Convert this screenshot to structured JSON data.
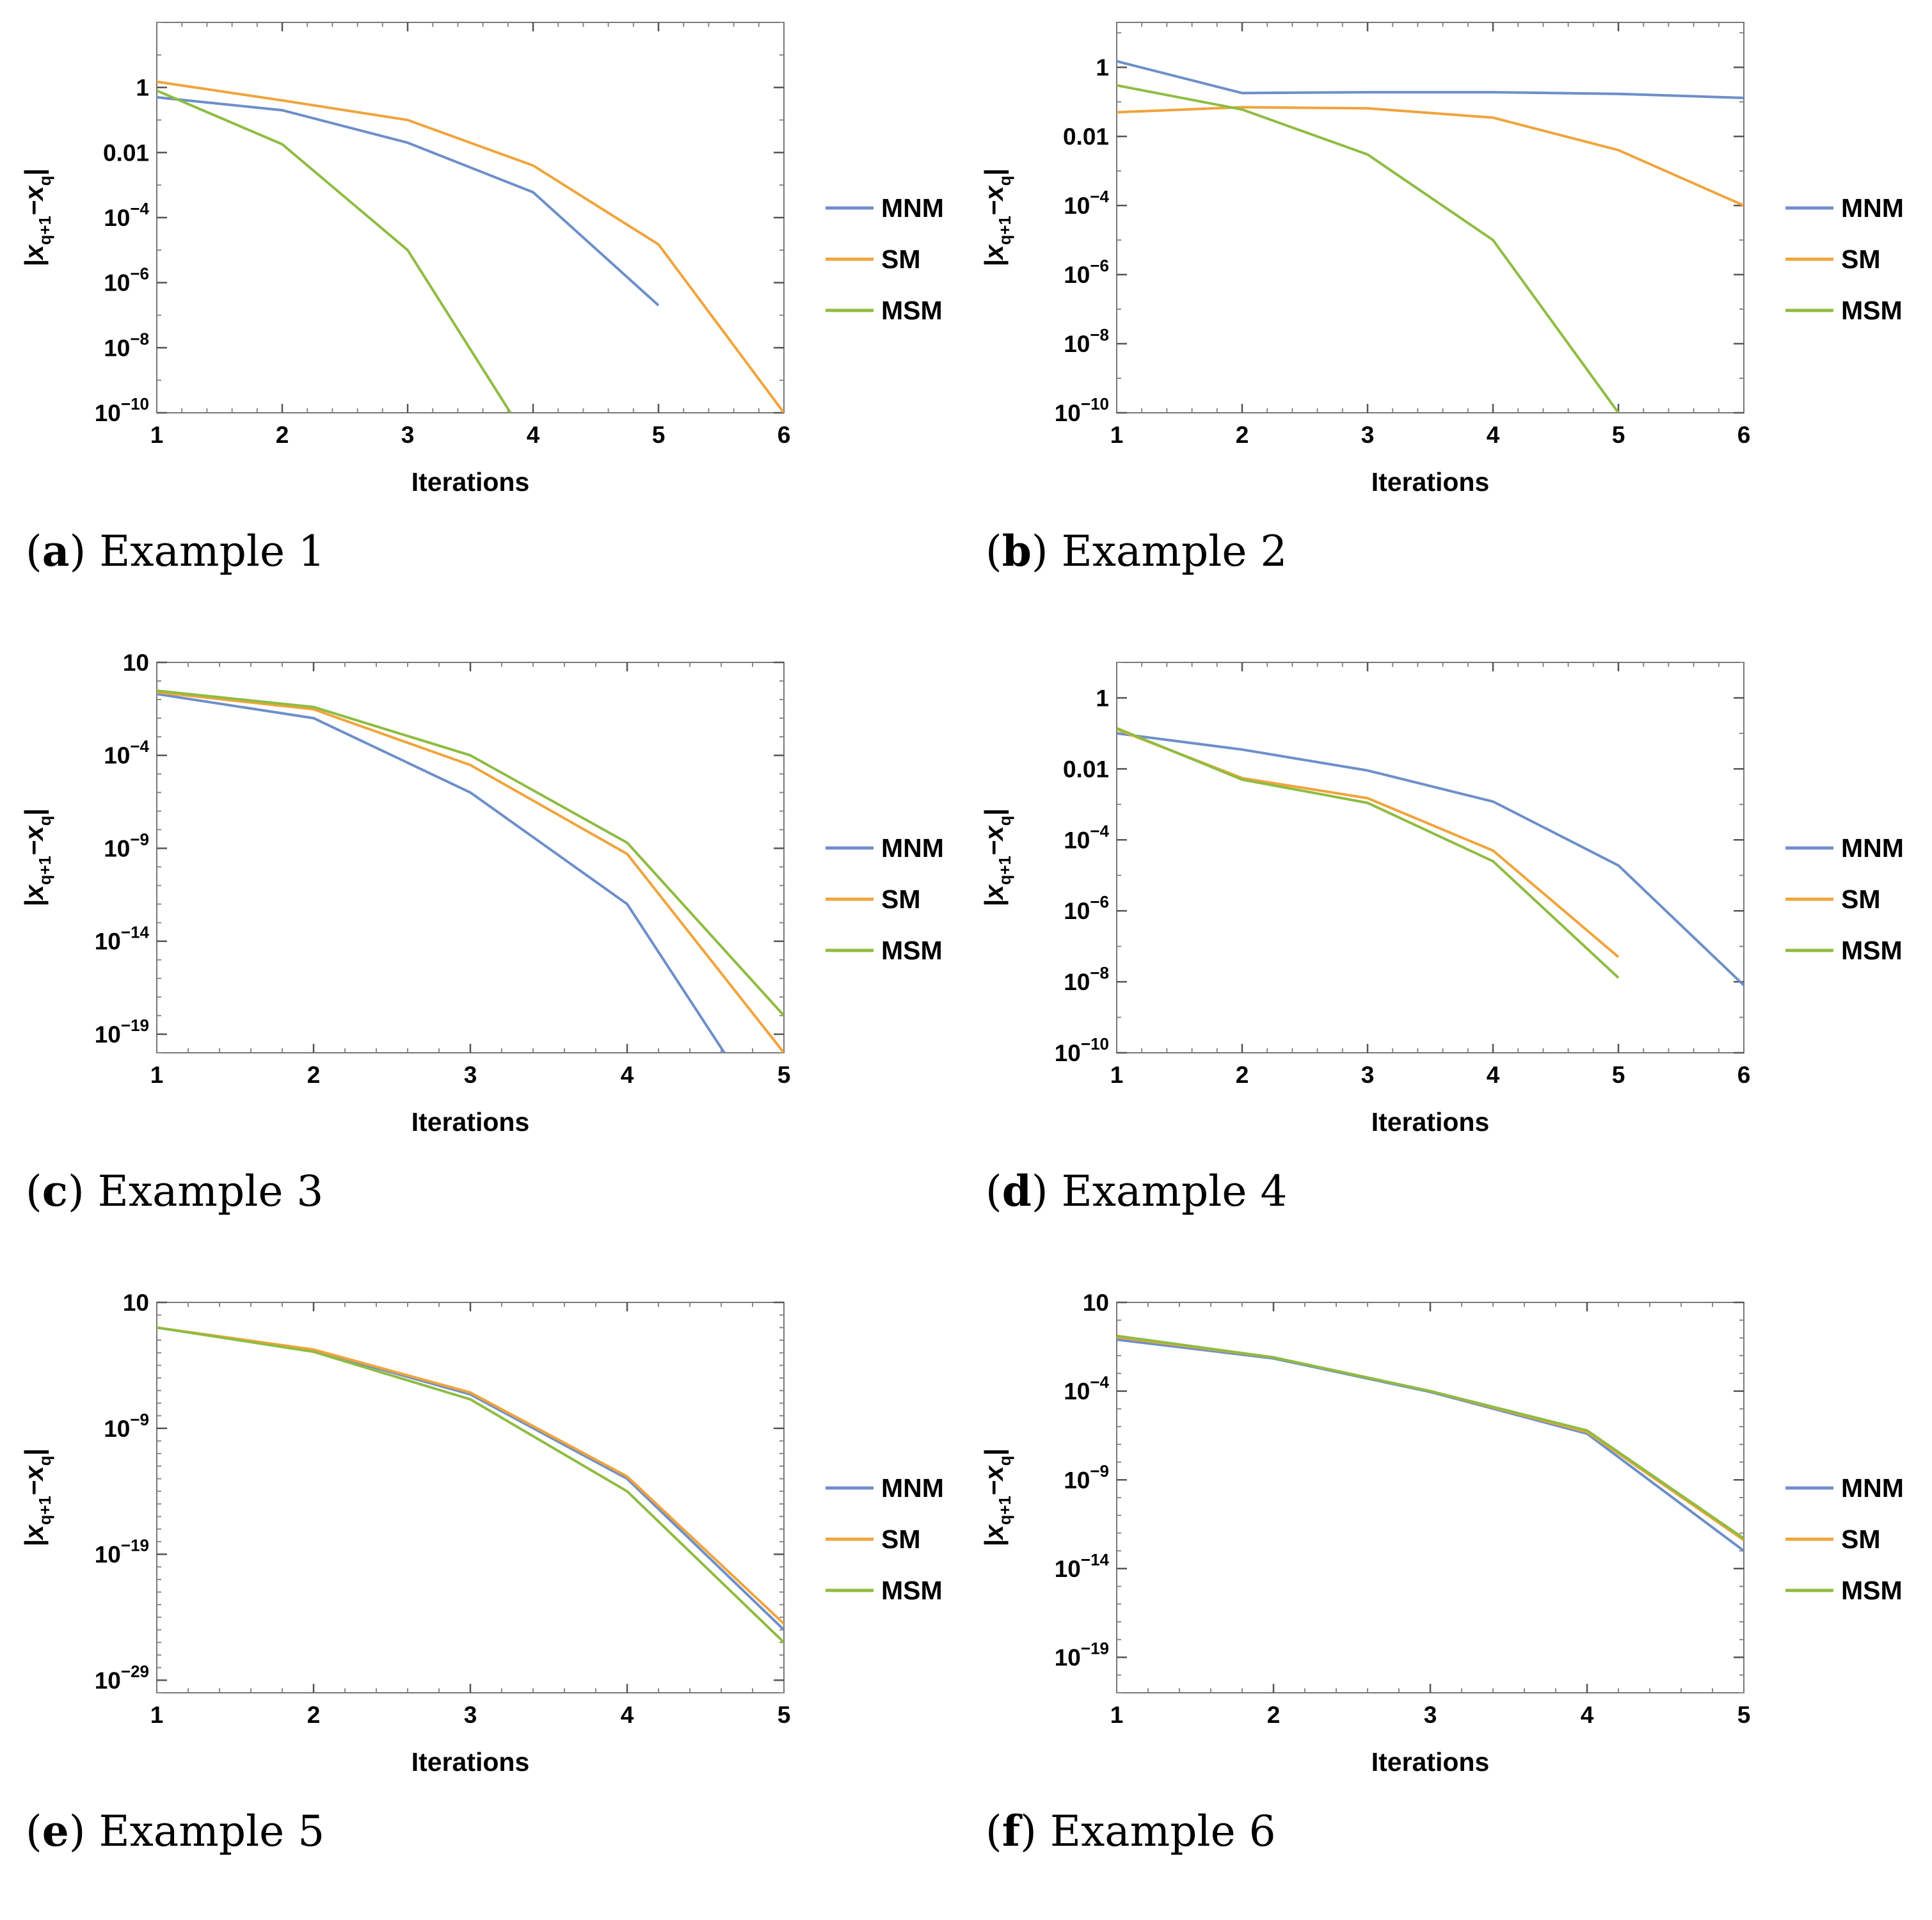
{
  "colors": {
    "MNM": "#6d8fc9",
    "SM": "#f0a43c",
    "MSM": "#8ebc42"
  },
  "chart_data": [
    {
      "type": "line",
      "yscale": "log",
      "caption_letter": "a",
      "caption_text": "Example 1",
      "xlabel": "Iterations",
      "ylabel": "|x",
      "xlim": [
        1,
        6
      ],
      "xticks": [
        "1",
        "2",
        "3",
        "4",
        "5",
        "6"
      ],
      "ylog_range": [
        -10,
        2
      ],
      "yticks": [
        {
          "exp": 0,
          "label": "1",
          "sup": ""
        },
        {
          "exp": -2,
          "label": "0.01",
          "sup": ""
        },
        {
          "exp": -4,
          "label": "10",
          "sup": "−4"
        },
        {
          "exp": -6,
          "label": "10",
          "sup": "−6"
        },
        {
          "exp": -8,
          "label": "10",
          "sup": "−8"
        },
        {
          "exp": -10,
          "label": "10",
          "sup": "−10"
        }
      ],
      "legend": [
        "MNM",
        "SM",
        "MSM"
      ],
      "series": [
        {
          "name": "MNM",
          "x": [
            1,
            2,
            3,
            4,
            5
          ],
          "y": [
            0.5,
            0.2,
            0.02,
            0.0006,
            2e-07
          ]
        },
        {
          "name": "SM",
          "x": [
            1,
            2,
            3,
            4,
            5,
            6
          ],
          "y": [
            1.5,
            0.4,
            0.1,
            0.004,
            1.5e-05,
            1e-10
          ]
        },
        {
          "name": "MSM",
          "x": [
            1,
            2,
            3,
            3.82
          ],
          "y": [
            0.8,
            0.018,
            1e-05,
            1e-10
          ]
        }
      ]
    },
    {
      "type": "line",
      "yscale": "log",
      "caption_letter": "b",
      "caption_text": "Example 2",
      "xlabel": "Iterations",
      "ylabel": "|x",
      "xlim": [
        1,
        6
      ],
      "xticks": [
        "1",
        "2",
        "3",
        "4",
        "5",
        "6"
      ],
      "ylog_range": [
        -10,
        1.3
      ],
      "yticks": [
        {
          "exp": 0,
          "label": "1",
          "sup": ""
        },
        {
          "exp": -2,
          "label": "0.01",
          "sup": ""
        },
        {
          "exp": -4,
          "label": "10",
          "sup": "−4"
        },
        {
          "exp": -6,
          "label": "10",
          "sup": "−6"
        },
        {
          "exp": -8,
          "label": "10",
          "sup": "−8"
        },
        {
          "exp": -10,
          "label": "10",
          "sup": "−10"
        }
      ],
      "legend": [
        "MNM",
        "SM",
        "MSM"
      ],
      "series": [
        {
          "name": "MNM",
          "x": [
            1,
            2,
            3,
            4,
            5,
            6
          ],
          "y": [
            1.5,
            0.18,
            0.19,
            0.19,
            0.17,
            0.13
          ]
        },
        {
          "name": "SM",
          "x": [
            1,
            2,
            3,
            4,
            5,
            6
          ],
          "y": [
            0.05,
            0.07,
            0.065,
            0.035,
            0.004,
            0.0001
          ]
        },
        {
          "name": "MSM",
          "x": [
            1,
            2,
            3,
            4,
            5
          ],
          "y": [
            0.3,
            0.06,
            0.003,
            1e-05,
            1e-10
          ]
        }
      ]
    },
    {
      "type": "line",
      "yscale": "log",
      "caption_letter": "c",
      "caption_text": "Example 3",
      "xlabel": "Iterations",
      "ylabel": "|x",
      "xlim": [
        1,
        5
      ],
      "xticks": [
        "1",
        "2",
        "3",
        "4",
        "5"
      ],
      "ylog_range": [
        -20,
        1
      ],
      "yticks": [
        {
          "exp": 1,
          "label": "10",
          "sup": ""
        },
        {
          "exp": -4,
          "label": "10",
          "sup": "−4"
        },
        {
          "exp": -9,
          "label": "10",
          "sup": "−9"
        },
        {
          "exp": -14,
          "label": "10",
          "sup": "−14"
        },
        {
          "exp": -19,
          "label": "10",
          "sup": "−19"
        }
      ],
      "legend": [
        "MNM",
        "SM",
        "MSM"
      ],
      "series": [
        {
          "name": "MNM",
          "x": [
            1,
            2,
            3,
            4,
            4.62
          ],
          "y": [
            0.2,
            0.01,
            1e-06,
            1e-12,
            1e-20
          ]
        },
        {
          "name": "SM",
          "x": [
            1,
            2,
            3,
            4,
            5
          ],
          "y": [
            0.25,
            0.03,
            3e-05,
            5e-10,
            1e-20
          ]
        },
        {
          "name": "MSM",
          "x": [
            1,
            2,
            3,
            4,
            5
          ],
          "y": [
            0.3,
            0.04,
            0.0001,
            2e-09,
            1e-18
          ]
        }
      ]
    },
    {
      "type": "line",
      "yscale": "log",
      "caption_letter": "d",
      "caption_text": "Example 4",
      "xlabel": "Iterations",
      "ylabel": "|x",
      "xlim": [
        1,
        6
      ],
      "xticks": [
        "1",
        "2",
        "3",
        "4",
        "5",
        "6"
      ],
      "ylog_range": [
        -10,
        1
      ],
      "yticks": [
        {
          "exp": 0,
          "label": "1",
          "sup": ""
        },
        {
          "exp": -2,
          "label": "0.01",
          "sup": ""
        },
        {
          "exp": -4,
          "label": "10",
          "sup": "−4"
        },
        {
          "exp": -6,
          "label": "10",
          "sup": "−6"
        },
        {
          "exp": -8,
          "label": "10",
          "sup": "−8"
        },
        {
          "exp": -10,
          "label": "10",
          "sup": "−10"
        }
      ],
      "legend": [
        "MNM",
        "SM",
        "MSM"
      ],
      "series": [
        {
          "name": "MNM",
          "x": [
            1,
            2,
            3,
            4,
            5,
            6
          ],
          "y": [
            0.1,
            0.035,
            0.009,
            0.0012,
            1.9e-05,
            8e-09
          ]
        },
        {
          "name": "SM",
          "x": [
            1,
            2,
            3,
            4,
            5
          ],
          "y": [
            0.13,
            0.0055,
            0.0015,
            5e-05,
            5e-08
          ]
        },
        {
          "name": "MSM",
          "x": [
            1,
            2,
            3,
            4,
            5
          ],
          "y": [
            0.14,
            0.005,
            0.0011,
            2.5e-05,
            1.3e-08
          ]
        }
      ]
    },
    {
      "type": "line",
      "yscale": "log",
      "caption_letter": "e",
      "caption_text": "Example 5",
      "xlabel": "Iterations",
      "ylabel": "|x",
      "xlim": [
        1,
        5
      ],
      "xticks": [
        "1",
        "2",
        "3",
        "4",
        "5"
      ],
      "ylog_range": [
        -30,
        1
      ],
      "yticks": [
        {
          "exp": 1,
          "label": "10",
          "sup": ""
        },
        {
          "exp": -9,
          "label": "10",
          "sup": "−9"
        },
        {
          "exp": -19,
          "label": "10",
          "sup": "−19"
        },
        {
          "exp": -29,
          "label": "10",
          "sup": "−29"
        }
      ],
      "legend": [
        "MNM",
        "SM",
        "MSM"
      ],
      "series": [
        {
          "name": "MNM",
          "x": [
            1,
            2,
            3,
            4,
            5
          ],
          "y": [
            0.1,
            0.0015,
            5e-07,
            1e-13,
            1e-25
          ]
        },
        {
          "name": "SM",
          "x": [
            1,
            2,
            3,
            4,
            5
          ],
          "y": [
            0.1,
            0.0018,
            7e-07,
            1.5e-13,
            3e-25
          ]
        },
        {
          "name": "MSM",
          "x": [
            1,
            2,
            3,
            4,
            5
          ],
          "y": [
            0.1,
            0.0012,
            2e-07,
            1e-14,
            1e-26
          ]
        }
      ]
    },
    {
      "type": "line",
      "yscale": "log",
      "caption_letter": "f",
      "caption_text": "Example 6",
      "xlabel": "Iterations",
      "ylabel": "|x",
      "xlim": [
        1,
        5
      ],
      "xticks": [
        "1",
        "2",
        "3",
        "4",
        "5"
      ],
      "ylog_range": [
        -21,
        1
      ],
      "yticks": [
        {
          "exp": 1,
          "label": "10",
          "sup": ""
        },
        {
          "exp": -4,
          "label": "10",
          "sup": "−4"
        },
        {
          "exp": -9,
          "label": "10",
          "sup": "−9"
        },
        {
          "exp": -14,
          "label": "10",
          "sup": "−14"
        },
        {
          "exp": -19,
          "label": "10",
          "sup": "−19"
        }
      ],
      "legend": [
        "MNM",
        "SM",
        "MSM"
      ],
      "series": [
        {
          "name": "MNM",
          "x": [
            1,
            2,
            3,
            4,
            5
          ],
          "y": [
            0.08,
            0.007,
            9e-05,
            4e-07,
            1e-13
          ]
        },
        {
          "name": "SM",
          "x": [
            1,
            2,
            3,
            4,
            5
          ],
          "y": [
            0.11,
            0.008,
            0.0001,
            5e-07,
            4e-13
          ]
        },
        {
          "name": "MSM",
          "x": [
            1,
            2,
            3,
            4,
            5
          ],
          "y": [
            0.13,
            0.008,
            0.0001,
            6e-07,
            5e-13
          ]
        }
      ]
    }
  ]
}
